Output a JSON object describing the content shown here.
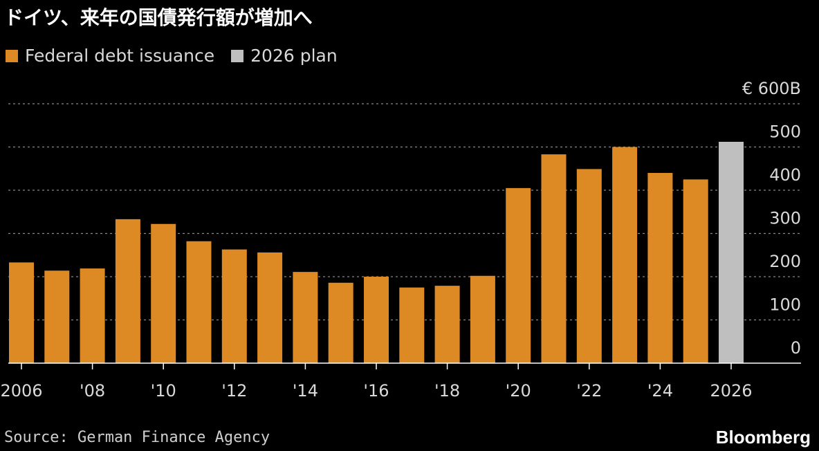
{
  "title": "ドイツ、来年の国債発行額が増加へ",
  "legend": [
    {
      "label": "Federal debt issuance",
      "color": "#dd8a24"
    },
    {
      "label": "2026 plan",
      "color": "#bfbfbf"
    }
  ],
  "source": "Source: German Finance Agency",
  "brand": "Bloomberg",
  "chart_data": {
    "type": "bar",
    "x": [
      2006,
      2007,
      2008,
      2009,
      2010,
      2011,
      2012,
      2013,
      2014,
      2015,
      2016,
      2017,
      2018,
      2019,
      2020,
      2021,
      2022,
      2023,
      2024,
      2025,
      2026
    ],
    "series": [
      {
        "name": "Federal debt issuance",
        "values": [
          233,
          214,
          219,
          333,
          322,
          282,
          263,
          256,
          211,
          186,
          200,
          175,
          179,
          202,
          405,
          483,
          449,
          500,
          440,
          425,
          null
        ],
        "color": "#dd8a24"
      },
      {
        "name": "2026 plan",
        "values": [
          null,
          null,
          null,
          null,
          null,
          null,
          null,
          null,
          null,
          null,
          null,
          null,
          null,
          null,
          null,
          null,
          null,
          null,
          null,
          null,
          512
        ],
        "color": "#bfbfbf"
      }
    ],
    "x_tick_labels": [
      "2006",
      "'08",
      "'10",
      "'12",
      "'14",
      "'16",
      "'18",
      "'20",
      "'22",
      "'24",
      "2026"
    ],
    "y_tick_labels": [
      "€ 600B",
      "500",
      "400",
      "300",
      "200",
      "100",
      "0"
    ],
    "y_ticks": [
      600,
      500,
      400,
      300,
      200,
      100,
      0
    ],
    "ylim": [
      0,
      600
    ],
    "y_axis_side": "right",
    "grid": "dashed horizontal"
  }
}
